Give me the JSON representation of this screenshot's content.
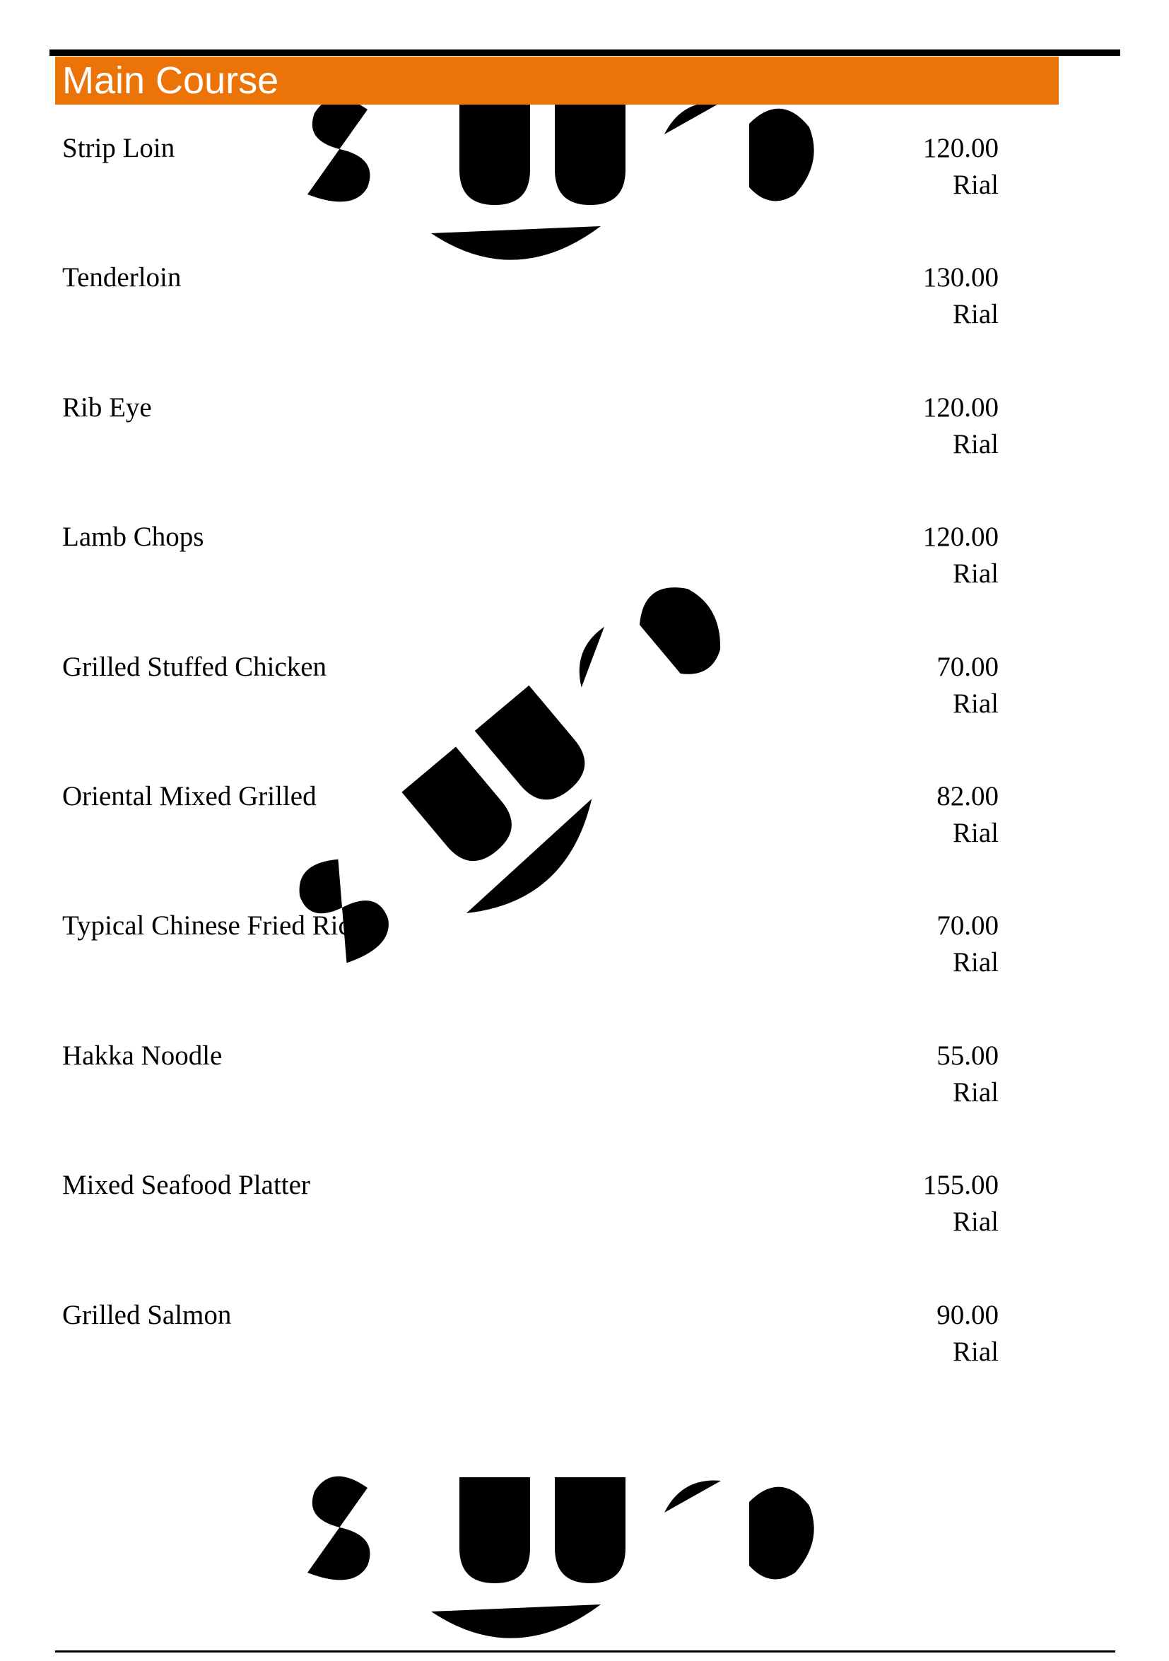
{
  "section": {
    "title": "Main Course"
  },
  "items": [
    {
      "name": "Strip Loin",
      "price": "120.00",
      "currency": "Rial"
    },
    {
      "name": "Tenderloin",
      "price": "130.00",
      "currency": "Rial"
    },
    {
      "name": "Rib Eye",
      "price": "120.00",
      "currency": "Rial"
    },
    {
      "name": "Lamb Chops",
      "price": "120.00",
      "currency": "Rial"
    },
    {
      "name": "Grilled Stuffed Chicken",
      "price": "70.00",
      "currency": "Rial"
    },
    {
      "name": "Oriental Mixed Grilled",
      "price": "82.00",
      "currency": "Rial"
    },
    {
      "name": "Typical Chinese Fried Rice",
      "price": "70.00",
      "currency": "Rial"
    },
    {
      "name": "Hakka Noodle",
      "price": "55.00",
      "currency": "Rial"
    },
    {
      "name": "Mixed Seafood Platter",
      "price": "155.00",
      "currency": "Rial"
    },
    {
      "name": "Grilled Salmon",
      "price": "90.00",
      "currency": "Rial"
    }
  ],
  "watermark": {
    "text": "slurpy",
    "colors": {
      "grey": "#ebebeb",
      "orange": "#fdeee0"
    }
  },
  "colors": {
    "header": "#ec7308"
  }
}
